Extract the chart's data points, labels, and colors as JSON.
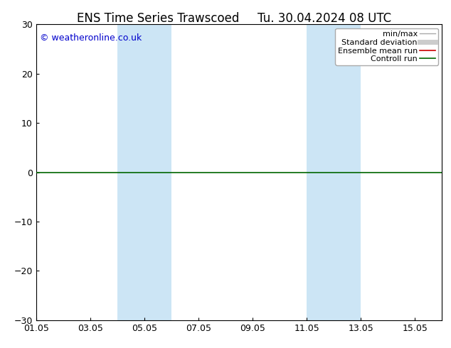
{
  "title": "ENS Time Series Trawscoed",
  "title2": "Tu. 30.04.2024 08 UTC",
  "watermark": "© weatheronline.co.uk",
  "ylim": [
    -30,
    30
  ],
  "yticks": [
    -30,
    -20,
    -10,
    0,
    10,
    20,
    30
  ],
  "xtick_labels": [
    "01.05",
    "03.05",
    "05.05",
    "07.05",
    "09.05",
    "11.05",
    "13.05",
    "15.05"
  ],
  "xtick_days": [
    1,
    3,
    5,
    7,
    9,
    11,
    13,
    15
  ],
  "xlim_start_day": 1,
  "xlim_end_day": 16,
  "shade_bands": [
    {
      "start_day": 4,
      "end_day": 6
    },
    {
      "start_day": 11,
      "end_day": 13
    }
  ],
  "shade_color": "#cce5f5",
  "legend_items": [
    {
      "label": "min/max",
      "color": "#aaaaaa",
      "lw": 1.0
    },
    {
      "label": "Standard deviation",
      "color": "#cccccc",
      "lw": 5
    },
    {
      "label": "Ensemble mean run",
      "color": "#cc0000",
      "lw": 1.2
    },
    {
      "label": "Controll run",
      "color": "#006600",
      "lw": 1.2
    }
  ],
  "zero_line_color": "#006600",
  "axis_color": "#000000",
  "background_color": "#ffffff",
  "watermark_color": "#0000cc",
  "title_fontsize": 12,
  "tick_fontsize": 9,
  "legend_fontsize": 8,
  "watermark_fontsize": 9
}
